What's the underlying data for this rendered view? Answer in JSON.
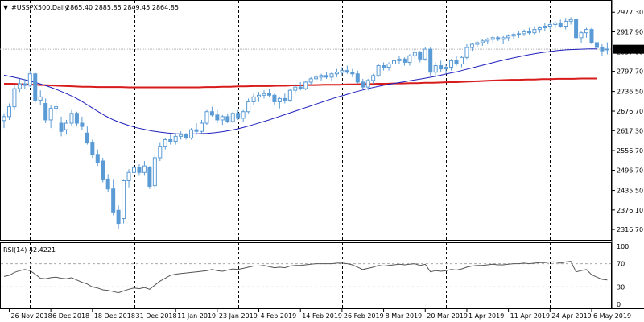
{
  "chart_data": {
    "type": "candlestick",
    "symbol_label": "#USSPX500,Daily",
    "ohlc_label": "2865.40 2885.85 2849.45 2864.85",
    "current_price": 2864.85,
    "current_price_label": "2864.85",
    "ylim": [
      2290,
      2995
    ],
    "y_ticks": [
      2977.3,
      2917.9,
      2857.0,
      2797.7,
      2736.5,
      2676.7,
      2617.3,
      2556.7,
      2496.7,
      2435.5,
      2376.1,
      2316.7
    ],
    "y_tick_labels": [
      "2977.30",
      "2917.90",
      "2857.00",
      "2797.70",
      "2736.50",
      "2676.70",
      "2617.30",
      "2556.70",
      "2496.70",
      "2435.50",
      "2376.10",
      "2316.70"
    ],
    "x_tick_labels": [
      "26 Nov 2018",
      "6 Dec 2018",
      "18 Dec 2018",
      "31 Dec 2018",
      "11 Jan 2019",
      "23 Jan 2019",
      "4 Feb 2019",
      "14 Feb 2019",
      "26 Feb 2019",
      "8 Mar 2019",
      "20 Mar 2019",
      "1 Apr 2019",
      "11 Apr 2019",
      "24 Apr 2019",
      "6 May 2019"
    ],
    "x_tick_bar_index": [
      1,
      9,
      17,
      25,
      33,
      41,
      49,
      57,
      65,
      73,
      81,
      89,
      97,
      105,
      113
    ],
    "period_separator_bar_index": [
      5,
      25,
      45,
      65,
      85,
      105
    ],
    "candles": [
      {
        "o": 2648,
        "h": 2670,
        "l": 2625,
        "c": 2660
      },
      {
        "o": 2660,
        "h": 2700,
        "l": 2650,
        "c": 2690
      },
      {
        "o": 2690,
        "h": 2755,
        "l": 2680,
        "c": 2745
      },
      {
        "o": 2745,
        "h": 2775,
        "l": 2735,
        "c": 2760
      },
      {
        "o": 2760,
        "h": 2775,
        "l": 2745,
        "c": 2755
      },
      {
        "o": 2755,
        "h": 2800,
        "l": 2750,
        "c": 2790
      },
      {
        "o": 2790,
        "h": 2795,
        "l": 2700,
        "c": 2710
      },
      {
        "o": 2710,
        "h": 2740,
        "l": 2695,
        "c": 2720
      },
      {
        "o": 2700,
        "h": 2715,
        "l": 2640,
        "c": 2650
      },
      {
        "o": 2650,
        "h": 2695,
        "l": 2625,
        "c": 2685
      },
      {
        "o": 2685,
        "h": 2705,
        "l": 2670,
        "c": 2690
      },
      {
        "o": 2640,
        "h": 2660,
        "l": 2600,
        "c": 2615
      },
      {
        "o": 2620,
        "h": 2650,
        "l": 2605,
        "c": 2640
      },
      {
        "o": 2640,
        "h": 2680,
        "l": 2630,
        "c": 2670
      },
      {
        "o": 2670,
        "h": 2675,
        "l": 2630,
        "c": 2640
      },
      {
        "o": 2640,
        "h": 2660,
        "l": 2620,
        "c": 2630
      },
      {
        "o": 2610,
        "h": 2630,
        "l": 2575,
        "c": 2580
      },
      {
        "o": 2580,
        "h": 2590,
        "l": 2535,
        "c": 2545
      },
      {
        "o": 2545,
        "h": 2560,
        "l": 2510,
        "c": 2520
      },
      {
        "o": 2525,
        "h": 2535,
        "l": 2460,
        "c": 2470
      },
      {
        "o": 2470,
        "h": 2485,
        "l": 2430,
        "c": 2440
      },
      {
        "o": 2440,
        "h": 2470,
        "l": 2360,
        "c": 2370
      },
      {
        "o": 2375,
        "h": 2390,
        "l": 2320,
        "c": 2335
      },
      {
        "o": 2350,
        "h": 2470,
        "l": 2335,
        "c": 2465
      },
      {
        "o": 2465,
        "h": 2500,
        "l": 2445,
        "c": 2490
      },
      {
        "o": 2490,
        "h": 2520,
        "l": 2470,
        "c": 2505
      },
      {
        "o": 2505,
        "h": 2515,
        "l": 2480,
        "c": 2490
      },
      {
        "o": 2490,
        "h": 2525,
        "l": 2480,
        "c": 2510
      },
      {
        "o": 2505,
        "h": 2510,
        "l": 2440,
        "c": 2448
      },
      {
        "o": 2450,
        "h": 2545,
        "l": 2445,
        "c": 2535
      },
      {
        "o": 2535,
        "h": 2580,
        "l": 2525,
        "c": 2570
      },
      {
        "o": 2570,
        "h": 2595,
        "l": 2560,
        "c": 2590
      },
      {
        "o": 2590,
        "h": 2605,
        "l": 2575,
        "c": 2585
      },
      {
        "o": 2585,
        "h": 2610,
        "l": 2575,
        "c": 2600
      },
      {
        "o": 2600,
        "h": 2615,
        "l": 2590,
        "c": 2605
      },
      {
        "o": 2605,
        "h": 2610,
        "l": 2590,
        "c": 2595
      },
      {
        "o": 2595,
        "h": 2625,
        "l": 2590,
        "c": 2620
      },
      {
        "o": 2620,
        "h": 2640,
        "l": 2605,
        "c": 2615
      },
      {
        "o": 2615,
        "h": 2650,
        "l": 2610,
        "c": 2640
      },
      {
        "o": 2640,
        "h": 2680,
        "l": 2635,
        "c": 2675
      },
      {
        "o": 2675,
        "h": 2690,
        "l": 2660,
        "c": 2665
      },
      {
        "o": 2665,
        "h": 2680,
        "l": 2640,
        "c": 2650
      },
      {
        "o": 2650,
        "h": 2665,
        "l": 2635,
        "c": 2660
      },
      {
        "o": 2660,
        "h": 2670,
        "l": 2640,
        "c": 2645
      },
      {
        "o": 2645,
        "h": 2675,
        "l": 2640,
        "c": 2670
      },
      {
        "o": 2670,
        "h": 2680,
        "l": 2650,
        "c": 2655
      },
      {
        "o": 2655,
        "h": 2680,
        "l": 2645,
        "c": 2675
      },
      {
        "o": 2675,
        "h": 2715,
        "l": 2670,
        "c": 2705
      },
      {
        "o": 2705,
        "h": 2730,
        "l": 2695,
        "c": 2720
      },
      {
        "o": 2720,
        "h": 2735,
        "l": 2705,
        "c": 2725
      },
      {
        "o": 2725,
        "h": 2740,
        "l": 2715,
        "c": 2730
      },
      {
        "o": 2730,
        "h": 2745,
        "l": 2720,
        "c": 2725
      },
      {
        "o": 2725,
        "h": 2730,
        "l": 2695,
        "c": 2705
      },
      {
        "o": 2705,
        "h": 2720,
        "l": 2685,
        "c": 2715
      },
      {
        "o": 2715,
        "h": 2730,
        "l": 2700,
        "c": 2710
      },
      {
        "o": 2710,
        "h": 2745,
        "l": 2705,
        "c": 2740
      },
      {
        "o": 2740,
        "h": 2760,
        "l": 2730,
        "c": 2750
      },
      {
        "o": 2750,
        "h": 2765,
        "l": 2740,
        "c": 2745
      },
      {
        "o": 2745,
        "h": 2770,
        "l": 2740,
        "c": 2765
      },
      {
        "o": 2765,
        "h": 2780,
        "l": 2755,
        "c": 2775
      },
      {
        "o": 2775,
        "h": 2790,
        "l": 2765,
        "c": 2780
      },
      {
        "o": 2780,
        "h": 2790,
        "l": 2770,
        "c": 2785
      },
      {
        "o": 2785,
        "h": 2795,
        "l": 2775,
        "c": 2780
      },
      {
        "o": 2780,
        "h": 2795,
        "l": 2770,
        "c": 2790
      },
      {
        "o": 2790,
        "h": 2805,
        "l": 2780,
        "c": 2795
      },
      {
        "o": 2795,
        "h": 2810,
        "l": 2785,
        "c": 2800
      },
      {
        "o": 2800,
        "h": 2815,
        "l": 2790,
        "c": 2795
      },
      {
        "o": 2795,
        "h": 2805,
        "l": 2780,
        "c": 2790
      },
      {
        "o": 2790,
        "h": 2800,
        "l": 2760,
        "c": 2765
      },
      {
        "o": 2765,
        "h": 2775,
        "l": 2745,
        "c": 2750
      },
      {
        "o": 2750,
        "h": 2775,
        "l": 2740,
        "c": 2770
      },
      {
        "o": 2770,
        "h": 2790,
        "l": 2760,
        "c": 2785
      },
      {
        "o": 2785,
        "h": 2820,
        "l": 2780,
        "c": 2815
      },
      {
        "o": 2815,
        "h": 2825,
        "l": 2800,
        "c": 2810
      },
      {
        "o": 2810,
        "h": 2825,
        "l": 2800,
        "c": 2820
      },
      {
        "o": 2820,
        "h": 2835,
        "l": 2810,
        "c": 2830
      },
      {
        "o": 2830,
        "h": 2845,
        "l": 2820,
        "c": 2835
      },
      {
        "o": 2835,
        "h": 2840,
        "l": 2815,
        "c": 2825
      },
      {
        "o": 2825,
        "h": 2850,
        "l": 2815,
        "c": 2845
      },
      {
        "o": 2845,
        "h": 2865,
        "l": 2835,
        "c": 2855
      },
      {
        "o": 2855,
        "h": 2860,
        "l": 2825,
        "c": 2835
      },
      {
        "o": 2835,
        "h": 2870,
        "l": 2830,
        "c": 2865
      },
      {
        "o": 2865,
        "h": 2870,
        "l": 2785,
        "c": 2795
      },
      {
        "o": 2795,
        "h": 2825,
        "l": 2780,
        "c": 2815
      },
      {
        "o": 2815,
        "h": 2830,
        "l": 2795,
        "c": 2805
      },
      {
        "o": 2805,
        "h": 2820,
        "l": 2790,
        "c": 2810
      },
      {
        "o": 2810,
        "h": 2835,
        "l": 2800,
        "c": 2830
      },
      {
        "o": 2830,
        "h": 2845,
        "l": 2815,
        "c": 2820
      },
      {
        "o": 2820,
        "h": 2845,
        "l": 2810,
        "c": 2840
      },
      {
        "o": 2840,
        "h": 2880,
        "l": 2835,
        "c": 2870
      },
      {
        "o": 2870,
        "h": 2885,
        "l": 2860,
        "c": 2880
      },
      {
        "o": 2880,
        "h": 2890,
        "l": 2870,
        "c": 2885
      },
      {
        "o": 2885,
        "h": 2895,
        "l": 2875,
        "c": 2890
      },
      {
        "o": 2890,
        "h": 2900,
        "l": 2880,
        "c": 2895
      },
      {
        "o": 2895,
        "h": 2905,
        "l": 2885,
        "c": 2900
      },
      {
        "o": 2900,
        "h": 2905,
        "l": 2890,
        "c": 2895
      },
      {
        "o": 2895,
        "h": 2905,
        "l": 2880,
        "c": 2900
      },
      {
        "o": 2900,
        "h": 2910,
        "l": 2890,
        "c": 2905
      },
      {
        "o": 2905,
        "h": 2915,
        "l": 2895,
        "c": 2910
      },
      {
        "o": 2910,
        "h": 2920,
        "l": 2900,
        "c": 2912
      },
      {
        "o": 2912,
        "h": 2925,
        "l": 2905,
        "c": 2918
      },
      {
        "o": 2918,
        "h": 2930,
        "l": 2910,
        "c": 2915
      },
      {
        "o": 2915,
        "h": 2935,
        "l": 2908,
        "c": 2925
      },
      {
        "o": 2925,
        "h": 2935,
        "l": 2915,
        "c": 2930
      },
      {
        "o": 2930,
        "h": 2945,
        "l": 2920,
        "c": 2935
      },
      {
        "o": 2935,
        "h": 2948,
        "l": 2925,
        "c": 2940
      },
      {
        "o": 2940,
        "h": 2950,
        "l": 2930,
        "c": 2945
      },
      {
        "o": 2945,
        "h": 2955,
        "l": 2930,
        "c": 2935
      },
      {
        "o": 2935,
        "h": 2960,
        "l": 2925,
        "c": 2950
      },
      {
        "o": 2950,
        "h": 2962,
        "l": 2940,
        "c": 2955
      },
      {
        "o": 2955,
        "h": 2960,
        "l": 2895,
        "c": 2900
      },
      {
        "o": 2900,
        "h": 2920,
        "l": 2885,
        "c": 2915
      },
      {
        "o": 2915,
        "h": 2930,
        "l": 2900,
        "c": 2925
      },
      {
        "o": 2925,
        "h": 2930,
        "l": 2880,
        "c": 2885
      },
      {
        "o": 2885,
        "h": 2890,
        "l": 2860,
        "c": 2870
      },
      {
        "o": 2870,
        "h": 2880,
        "l": 2845,
        "c": 2860
      },
      {
        "o": 2865.4,
        "h": 2885.85,
        "l": 2849.45,
        "c": 2864.85
      }
    ],
    "ma_blue": [
      2786,
      2781,
      2776,
      2770,
      2764,
      2757,
      2749,
      2740,
      2730,
      2719,
      2706,
      2691,
      2676,
      2662,
      2650,
      2641,
      2633,
      2626,
      2621,
      2616,
      2613,
      2610,
      2608,
      2607,
      2607,
      2608,
      2609,
      2611,
      2614,
      2618,
      2623,
      2629,
      2636,
      2643,
      2650,
      2658,
      2666,
      2674,
      2682,
      2690,
      2698,
      2706,
      2714,
      2721,
      2728,
      2735,
      2741,
      2747,
      2752,
      2757,
      2761,
      2765,
      2769,
      2773,
      2777,
      2781,
      2786,
      2791,
      2796,
      2802,
      2808,
      2814,
      2820,
      2826,
      2832,
      2837,
      2842,
      2847,
      2851,
      2855,
      2858,
      2861,
      2863,
      2864,
      2865,
      2866,
      2866
    ],
    "ma_red": [
      2760,
      2760,
      2759,
      2758,
      2757,
      2756,
      2755,
      2754,
      2753,
      2752,
      2751,
      2751,
      2750,
      2750,
      2750,
      2750,
      2749,
      2749,
      2749,
      2749,
      2749,
      2749,
      2749,
      2749,
      2749,
      2749,
      2750,
      2750,
      2751,
      2751,
      2752,
      2752,
      2753,
      2753,
      2753,
      2754,
      2754,
      2755,
      2755,
      2756,
      2756,
      2757,
      2757,
      2757,
      2758,
      2758,
      2759,
      2759,
      2760,
      2760,
      2761,
      2761,
      2762,
      2762,
      2763,
      2763,
      2764,
      2765,
      2765,
      2766,
      2767,
      2768,
      2769,
      2770,
      2771,
      2772,
      2772,
      2773,
      2773,
      2774,
      2774,
      2775,
      2775,
      2775,
      2776,
      2776,
      2776
    ],
    "ma_sample_bar_step": 1.5,
    "rsi": {
      "label": "RSI(14) 42.4221",
      "period": 14,
      "value": 42.4221,
      "ylim": [
        0,
        100
      ],
      "ticks": [
        100,
        70,
        30,
        0
      ],
      "tick_labels": [
        "100",
        "70",
        "30",
        "0"
      ],
      "levels": [
        70,
        30
      ],
      "values": [
        48,
        50,
        55,
        58,
        60,
        58,
        52,
        45,
        44,
        46,
        47,
        45,
        44,
        46,
        42,
        38,
        35,
        30,
        28,
        25,
        24,
        22,
        20,
        23,
        26,
        28,
        27,
        29,
        26,
        33,
        40,
        45,
        50,
        52,
        53,
        54,
        55,
        56,
        57,
        58,
        60,
        58,
        57,
        59,
        61,
        60,
        62,
        64,
        66,
        66,
        67,
        65,
        63,
        64,
        63,
        66,
        67,
        67,
        68,
        69,
        70,
        70,
        70,
        70,
        71,
        71,
        70,
        68,
        64,
        60,
        62,
        64,
        67,
        66,
        67,
        68,
        69,
        68,
        69,
        70,
        67,
        69,
        56,
        58,
        57,
        58,
        60,
        59,
        61,
        64,
        66,
        67,
        67,
        68,
        69,
        68,
        68,
        69,
        70,
        70,
        71,
        70,
        71,
        72,
        72,
        73,
        73,
        71,
        73,
        74,
        56,
        58,
        60,
        51,
        47,
        43,
        42
      ]
    },
    "colors": {
      "bull": "#5b9bd5",
      "bear": "#5b9bd5",
      "ma_blue": "#1f1fbf",
      "ma_red": "#d81b1b",
      "grid_separator": "#000000",
      "rsi_line": "#555555",
      "rsi_level": "#aaaaaa",
      "price_line": "#b0b0b0",
      "price_box_bg": "#000000",
      "price_box_text": "#ffffff"
    }
  }
}
